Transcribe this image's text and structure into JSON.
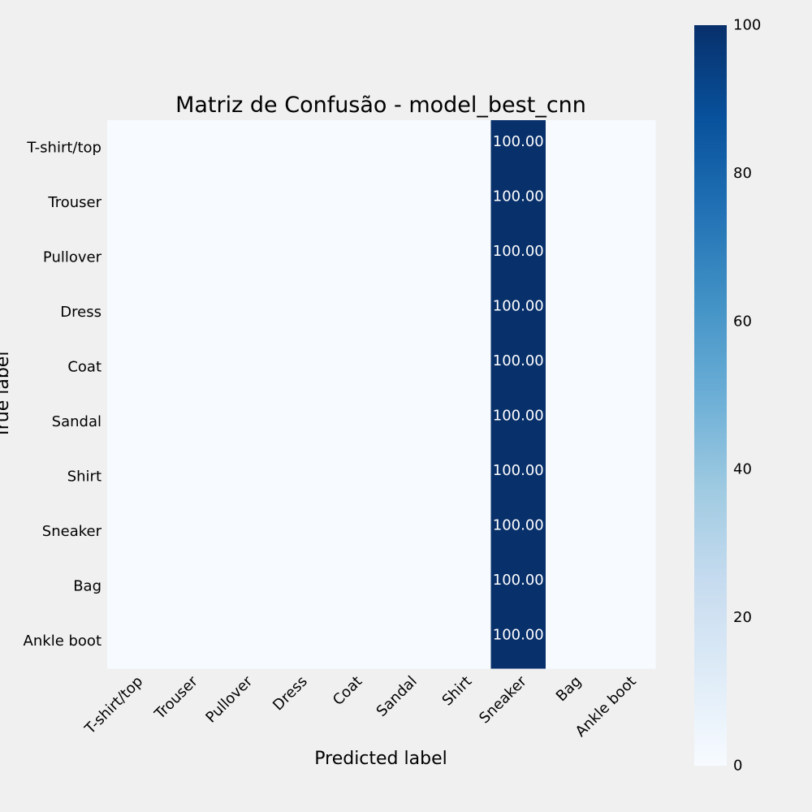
{
  "chart_data": {
    "type": "heatmap",
    "title": "Matriz de Confusão - model_best_cnn",
    "xlabel": "Predicted label",
    "ylabel": "True label",
    "row_labels": [
      "T-shirt/top",
      "Trouser",
      "Pullover",
      "Dress",
      "Coat",
      "Sandal",
      "Shirt",
      "Sneaker",
      "Bag",
      "Ankle boot"
    ],
    "col_labels": [
      "T-shirt/top",
      "Trouser",
      "Pullover",
      "Dress",
      "Coat",
      "Sandal",
      "Shirt",
      "Sneaker",
      "Bag",
      "Ankle boot"
    ],
    "values": [
      [
        0,
        0,
        0,
        0,
        0,
        0,
        0,
        100,
        0,
        0
      ],
      [
        0,
        0,
        0,
        0,
        0,
        0,
        0,
        100,
        0,
        0
      ],
      [
        0,
        0,
        0,
        0,
        0,
        0,
        0,
        100,
        0,
        0
      ],
      [
        0,
        0,
        0,
        0,
        0,
        0,
        0,
        100,
        0,
        0
      ],
      [
        0,
        0,
        0,
        0,
        0,
        0,
        0,
        100,
        0,
        0
      ],
      [
        0,
        0,
        0,
        0,
        0,
        0,
        0,
        100,
        0,
        0
      ],
      [
        0,
        0,
        0,
        0,
        0,
        0,
        0,
        100,
        0,
        0
      ],
      [
        0,
        0,
        0,
        0,
        0,
        0,
        0,
        100,
        0,
        0
      ],
      [
        0,
        0,
        0,
        0,
        0,
        0,
        0,
        100,
        0,
        0
      ],
      [
        0,
        0,
        0,
        0,
        0,
        0,
        0,
        100,
        0,
        0
      ]
    ],
    "cell_labels": [
      [
        "",
        "",
        "",
        "",
        "",
        "",
        "",
        "100.00",
        "",
        ""
      ],
      [
        "",
        "",
        "",
        "",
        "",
        "",
        "",
        "100.00",
        "",
        ""
      ],
      [
        "",
        "",
        "",
        "",
        "",
        "",
        "",
        "100.00",
        "",
        ""
      ],
      [
        "",
        "",
        "",
        "",
        "",
        "",
        "",
        "100.00",
        "",
        ""
      ],
      [
        "",
        "",
        "",
        "",
        "",
        "",
        "",
        "100.00",
        "",
        ""
      ],
      [
        "",
        "",
        "",
        "",
        "",
        "",
        "",
        "100.00",
        "",
        ""
      ],
      [
        "",
        "",
        "",
        "",
        "",
        "",
        "",
        "100.00",
        "",
        ""
      ],
      [
        "",
        "",
        "",
        "",
        "",
        "",
        "",
        "100.00",
        "",
        ""
      ],
      [
        "",
        "",
        "",
        "",
        "",
        "",
        "",
        "100.00",
        "",
        ""
      ],
      [
        "",
        "",
        "",
        "",
        "",
        "",
        "",
        "100.00",
        "",
        ""
      ]
    ],
    "colorbar": {
      "colormap": "Blues",
      "range": [
        0,
        100
      ],
      "ticks": [
        "0",
        "20",
        "40",
        "60",
        "80",
        "100"
      ]
    },
    "grid": false,
    "colors": {
      "background": "#f0f0f0",
      "low": "#f7fbff",
      "high": "#08306b",
      "text_dark": "#ffffff",
      "text_light": "#000000"
    }
  }
}
